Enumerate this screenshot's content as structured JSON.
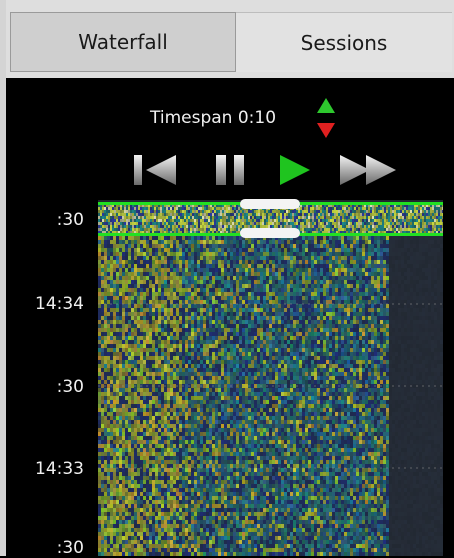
{
  "tabs": {
    "waterfall_label": "Waterfall",
    "sessions_label": "Sessions",
    "active": "Waterfall"
  },
  "timespan": {
    "label": "Timespan 0:10"
  },
  "controls": {
    "skip_back_icon": "skip-to-start-icon",
    "pause_icon": "pause-icon",
    "play_icon": "play-icon",
    "fast_forward_icon": "fast-forward-icon",
    "play_color": "#1fc41f"
  },
  "time_axis": {
    "labels": [
      ":30",
      "14:34",
      ":30",
      "14:33",
      ":30"
    ]
  },
  "colors": {
    "accent_green": "#22e022",
    "up_arrow": "#2ec82e",
    "down_arrow": "#e02020"
  }
}
